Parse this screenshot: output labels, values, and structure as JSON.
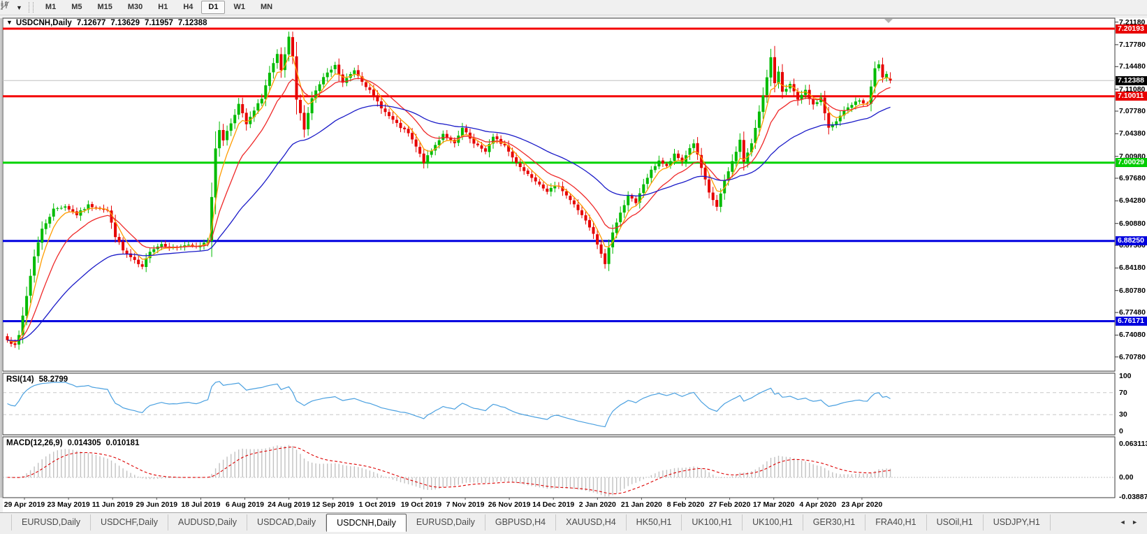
{
  "toolbar": {
    "timeframes": [
      "M1",
      "M5",
      "M15",
      "M30",
      "H1",
      "H4",
      "D1",
      "W1",
      "MN"
    ],
    "active_timeframe": "D1"
  },
  "icons": {
    "dropdown_caret": "▼",
    "collapse_arrow": "▼",
    "scroll_left": "◄",
    "scroll_right": "►"
  },
  "chart": {
    "title": {
      "symbol": "USDCNH,Daily",
      "open": "7.12677",
      "high": "7.13629",
      "low": "7.11957",
      "close": "7.12388"
    }
  },
  "price_axis": {
    "ticks": [
      "7.21180",
      "7.17780",
      "7.14480",
      "7.11080",
      "7.07780",
      "7.04380",
      "7.00980",
      "6.97680",
      "6.94280",
      "6.90880",
      "6.87580",
      "6.84180",
      "6.80780",
      "6.77480",
      "6.74080",
      "6.70780"
    ],
    "line_labels": [
      {
        "text": "7.20193",
        "price": 7.20193,
        "bg": "#e80000",
        "fg": "#ffffff"
      },
      {
        "text": "7.10011",
        "price": 7.10011,
        "bg": "#e80000",
        "fg": "#ffffff"
      },
      {
        "text": "7.00029",
        "price": 7.00029,
        "bg": "#00cc00",
        "fg": "#ffffff"
      },
      {
        "text": "6.88250",
        "price": 6.8825,
        "bg": "#0000dd",
        "fg": "#ffffff"
      },
      {
        "text": "6.76171",
        "price": 6.76171,
        "bg": "#0000dd",
        "fg": "#ffffff"
      }
    ],
    "current_label": {
      "text": "7.12388",
      "price": 7.12388,
      "bg": "#000000",
      "fg": "#ffffff"
    }
  },
  "rsi": {
    "name": "RSI(14)",
    "value": "58.2799",
    "period": 14,
    "scale_labels": [
      {
        "text": "100",
        "value": 100
      },
      {
        "text": "70",
        "value": 70
      },
      {
        "text": "30",
        "value": 30
      },
      {
        "text": "0",
        "value": 0
      }
    ],
    "dashed_levels": [
      70,
      30
    ],
    "line_color": "#4aa0e0"
  },
  "macd": {
    "name": "MACD(12,26,9)",
    "value1": "0.014305",
    "value2": "0.010181",
    "fast": 12,
    "slow": 26,
    "signal": 9,
    "scale_labels": [
      {
        "text": "0.063113",
        "value": 0.063113
      },
      {
        "text": "0.00",
        "value": 0
      },
      {
        "text": "-0.038872",
        "value": -0.038872
      }
    ],
    "histogram_color": "#c2c2c2",
    "signal_color": "#dd0000"
  },
  "date_axis": {
    "labels": [
      "29 Apr 2019",
      "23 May 2019",
      "11 Jun 2019",
      "29 Jun 2019",
      "18 Jul 2019",
      "6 Aug 2019",
      "24 Aug 2019",
      "12 Sep 2019",
      "1 Oct 2019",
      "19 Oct 2019",
      "7 Nov 2019",
      "26 Nov 2019",
      "14 Dec 2019",
      "2 Jan 2020",
      "21 Jan 2020",
      "8 Feb 2020",
      "27 Feb 2020",
      "17 Mar 2020",
      "4 Apr 2020",
      "23 Apr 2020"
    ]
  },
  "tabs": {
    "items": [
      {
        "label": "EURUSD,Daily"
      },
      {
        "label": "USDCHF,Daily"
      },
      {
        "label": "AUDUSD,Daily"
      },
      {
        "label": "USDCAD,Daily"
      },
      {
        "label": "USDCNH,Daily"
      },
      {
        "label": "EURUSD,Daily"
      },
      {
        "label": "GBPUSD,H4"
      },
      {
        "label": "XAUUSD,H4"
      },
      {
        "label": "HK50,H1"
      },
      {
        "label": "UK100,H1"
      },
      {
        "label": "UK100,H1"
      },
      {
        "label": "GER30,H1"
      },
      {
        "label": "FRA40,H1"
      },
      {
        "label": "USOil,H1"
      },
      {
        "label": "USDJPY,H1"
      }
    ],
    "active_index": 4
  },
  "chart_data": {
    "type": "candlestick",
    "symbol": "USDCNH",
    "timeframe": "Daily",
    "candle_count": 230,
    "up_color": "#00bb00",
    "down_color": "#e60000",
    "current_price": 7.12388,
    "current_price_line_color": "#c0c0c0",
    "last_candle": {
      "open": 7.12677,
      "high": 7.13629,
      "low": 7.11957,
      "close": 7.12388
    },
    "y_ticks": [
      7.2118,
      7.1778,
      7.1448,
      7.1108,
      7.0778,
      7.0438,
      7.0098,
      6.9768,
      6.9428,
      6.9088,
      6.8758,
      6.8418,
      6.8078,
      6.7748,
      6.7408,
      6.7078
    ],
    "levels": [
      {
        "price": 7.20193,
        "color": "#f40000",
        "width": 3
      },
      {
        "price": 7.10011,
        "color": "#f40000",
        "width": 3
      },
      {
        "price": 7.00029,
        "color": "#00d300",
        "width": 3
      },
      {
        "price": 6.8825,
        "color": "#0000e0",
        "width": 3
      },
      {
        "price": 6.76171,
        "color": "#0000e0",
        "width": 3
      }
    ],
    "moving_averages": [
      {
        "period": 5,
        "color": "#ff9c00"
      },
      {
        "period": 13,
        "color": "#ef2929"
      },
      {
        "period": 40,
        "color": "#1b1bc8"
      }
    ],
    "indicators": {
      "rsi_current": 58.2799,
      "macd_current": 0.014305,
      "macd_signal_current": 0.010181,
      "rsi_range": [
        0,
        100
      ],
      "macd_range": [
        -0.038872,
        0.063113
      ]
    },
    "price_path": [
      [
        0,
        6.735
      ],
      [
        2,
        6.724
      ],
      [
        3,
        6.74
      ],
      [
        5,
        6.8
      ],
      [
        7,
        6.86
      ],
      [
        9,
        6.9
      ],
      [
        12,
        6.93
      ],
      [
        15,
        6.935
      ],
      [
        18,
        6.922
      ],
      [
        21,
        6.936
      ],
      [
        24,
        6.932
      ],
      [
        26,
        6.928
      ],
      [
        28,
        6.89
      ],
      [
        30,
        6.868
      ],
      [
        33,
        6.852
      ],
      [
        35,
        6.842
      ],
      [
        37,
        6.868
      ],
      [
        40,
        6.878
      ],
      [
        43,
        6.872
      ],
      [
        46,
        6.876
      ],
      [
        49,
        6.873
      ],
      [
        52,
        6.884
      ],
      [
        53,
        6.95
      ],
      [
        54,
        7.02
      ],
      [
        55,
        7.05
      ],
      [
        56,
        7.035
      ],
      [
        58,
        7.06
      ],
      [
        60,
        7.088
      ],
      [
        62,
        7.058
      ],
      [
        64,
        7.078
      ],
      [
        66,
        7.098
      ],
      [
        68,
        7.135
      ],
      [
        70,
        7.162
      ],
      [
        71,
        7.138
      ],
      [
        73,
        7.188
      ],
      [
        74,
        7.158
      ],
      [
        75,
        7.095
      ],
      [
        77,
        7.052
      ],
      [
        79,
        7.098
      ],
      [
        82,
        7.128
      ],
      [
        85,
        7.146
      ],
      [
        87,
        7.12
      ],
      [
        90,
        7.14
      ],
      [
        92,
        7.124
      ],
      [
        95,
        7.1
      ],
      [
        98,
        7.076
      ],
      [
        101,
        7.058
      ],
      [
        104,
        7.044
      ],
      [
        106,
        7.024
      ],
      [
        108,
        7.001
      ],
      [
        110,
        7.018
      ],
      [
        113,
        7.044
      ],
      [
        116,
        7.028
      ],
      [
        118,
        7.052
      ],
      [
        121,
        7.028
      ],
      [
        124,
        7.018
      ],
      [
        126,
        7.038
      ],
      [
        129,
        7.026
      ],
      [
        131,
        7.008
      ],
      [
        134,
        6.988
      ],
      [
        137,
        6.974
      ],
      [
        140,
        6.958
      ],
      [
        143,
        6.966
      ],
      [
        146,
        6.944
      ],
      [
        149,
        6.922
      ],
      [
        152,
        6.892
      ],
      [
        154,
        6.862
      ],
      [
        155,
        6.848
      ],
      [
        157,
        6.896
      ],
      [
        159,
        6.924
      ],
      [
        161,
        6.952
      ],
      [
        163,
        6.938
      ],
      [
        165,
        6.968
      ],
      [
        167,
        6.988
      ],
      [
        169,
        7.004
      ],
      [
        171,
        6.994
      ],
      [
        173,
        7.012
      ],
      [
        175,
        7.002
      ],
      [
        177,
        7.022
      ],
      [
        178,
        7.03
      ],
      [
        180,
        6.992
      ],
      [
        182,
        6.954
      ],
      [
        184,
        6.934
      ],
      [
        186,
        6.972
      ],
      [
        188,
        7.002
      ],
      [
        190,
        7.034
      ],
      [
        191,
        7.002
      ],
      [
        193,
        7.028
      ],
      [
        195,
        7.078
      ],
      [
        197,
        7.128
      ],
      [
        198,
        7.158
      ],
      [
        199,
        7.118
      ],
      [
        200,
        7.138
      ],
      [
        201,
        7.108
      ],
      [
        203,
        7.118
      ],
      [
        205,
        7.094
      ],
      [
        207,
        7.108
      ],
      [
        209,
        7.086
      ],
      [
        211,
        7.098
      ],
      [
        213,
        7.052
      ],
      [
        215,
        7.062
      ],
      [
        217,
        7.078
      ],
      [
        219,
        7.088
      ],
      [
        221,
        7.094
      ],
      [
        223,
        7.088
      ],
      [
        225,
        7.142
      ],
      [
        226,
        7.148
      ],
      [
        227,
        7.127
      ],
      [
        228,
        7.132
      ],
      [
        229,
        7.12388
      ]
    ]
  }
}
